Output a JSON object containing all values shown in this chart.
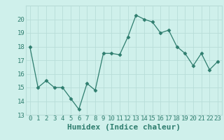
{
  "x": [
    0,
    1,
    2,
    3,
    4,
    5,
    6,
    7,
    8,
    9,
    10,
    11,
    12,
    13,
    14,
    15,
    16,
    17,
    18,
    19,
    20,
    21,
    22,
    23
  ],
  "y": [
    18,
    15,
    15.5,
    15,
    15,
    14.2,
    13.4,
    15.3,
    14.8,
    17.5,
    17.5,
    17.4,
    18.7,
    20.3,
    20.0,
    19.8,
    19.0,
    19.2,
    18.0,
    17.5,
    16.6,
    17.5,
    16.3,
    16.9
  ],
  "line_color": "#2e7d6e",
  "marker": "D",
  "marker_size": 2.5,
  "bg_color": "#cff0eb",
  "grid_color": "#b8ddd8",
  "xlabel": "Humidex (Indice chaleur)",
  "ylim": [
    13,
    21
  ],
  "xlim": [
    -0.5,
    23.5
  ],
  "yticks": [
    13,
    14,
    15,
    16,
    17,
    18,
    19,
    20
  ],
  "xticks": [
    0,
    1,
    2,
    3,
    4,
    5,
    6,
    7,
    8,
    9,
    10,
    11,
    12,
    13,
    14,
    15,
    16,
    17,
    18,
    19,
    20,
    21,
    22,
    23
  ],
  "tick_color": "#2e7d6e",
  "label_color": "#2e7d6e",
  "font_size": 6.5
}
